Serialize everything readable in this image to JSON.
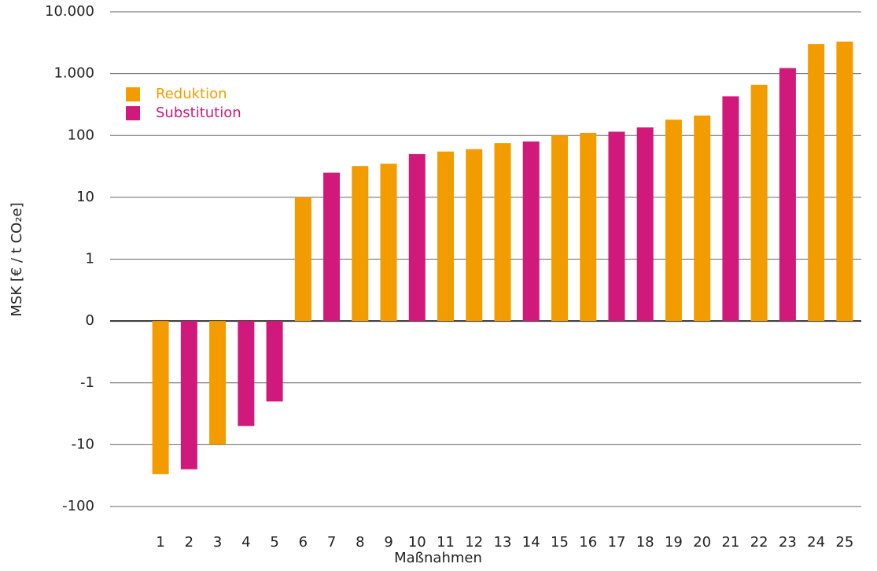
{
  "chart_data": {
    "type": "bar",
    "x_label": "Maßnahmen",
    "y_label": "MSK [€ / t CO₂e]",
    "categories": [
      "1",
      "2",
      "3",
      "4",
      "5",
      "6",
      "7",
      "8",
      "9",
      "10",
      "11",
      "12",
      "13",
      "14",
      "15",
      "16",
      "17",
      "18",
      "19",
      "20",
      "21",
      "22",
      "23",
      "24",
      "25"
    ],
    "series": [
      {
        "name": "Reduktion",
        "color": "#f39c00",
        "values": [
          -30,
          null,
          -10,
          null,
          null,
          10,
          null,
          32,
          35,
          null,
          55,
          60,
          75,
          null,
          100,
          110,
          null,
          null,
          180,
          210,
          null,
          660,
          null,
          3000,
          3300
        ]
      },
      {
        "name": "Substitution",
        "color": "#d0197a",
        "values": [
          null,
          -25,
          null,
          -5,
          -2,
          null,
          25,
          null,
          null,
          50,
          null,
          null,
          null,
          80,
          null,
          null,
          115,
          135,
          null,
          null,
          430,
          null,
          1230,
          null,
          null
        ]
      }
    ],
    "yscale": "symlog",
    "ylim": [
      -100,
      10000
    ],
    "yticks": [
      {
        "value": 10000,
        "label": "10.000"
      },
      {
        "value": 1000,
        "label": "1.000"
      },
      100,
      10,
      1,
      0,
      -1,
      -10,
      -100
    ],
    "grid": true,
    "legend": "upper left"
  }
}
